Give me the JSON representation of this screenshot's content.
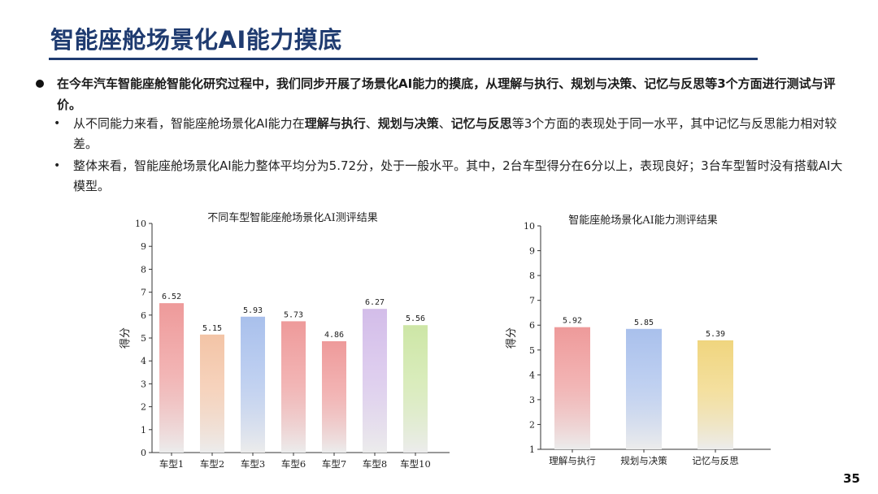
{
  "slide": {
    "title": "智能座舱场景化AI能力摸底",
    "page_number": "35"
  },
  "content": {
    "main_bullet": "在今年汽车智能座舱智能化研究过程中，我们同步开展了场景化AI能力的摸底，从理解与执行、规划与决策、记忆与反思等3个方面进行测试与评价。",
    "sub1": {
      "prefix": "从不同能力来看，智能座舱场景化AI能力在",
      "b1": "理解与执行",
      "sep1": "、",
      "b2": "规划与决策",
      "sep2": "、",
      "b3": "记忆与反思",
      "suffix": "等3个方面的表现处于同一水平，其中记忆与反思能力相对较差。"
    },
    "sub2": "整体来看，智能座舱场景化AI能力整体平均分为5.72分，处于一般水平。其中，2台车型得分在6分以上，表现良好；3台车型暂时没有搭载AI大模型。",
    "bullet_glyph": "•"
  },
  "chart_data": [
    {
      "type": "bar",
      "title": "不同车型智能座舱场景化AI测评结果",
      "ylabel": "得分",
      "xlabel": "",
      "ylim": [
        0,
        10
      ],
      "yticks": [
        "0",
        "1",
        "2",
        "3",
        "4",
        "5",
        "6",
        "7",
        "8",
        "9",
        "10"
      ],
      "categories": [
        "车型1",
        "车型2",
        "车型3",
        "车型6",
        "车型7",
        "车型8",
        "车型10"
      ],
      "values": [
        6.52,
        5.15,
        5.93,
        5.73,
        4.86,
        6.27,
        5.56
      ],
      "value_labels": [
        "6.52",
        "5.15",
        "5.93",
        "5.73",
        "4.86",
        "6.27",
        "5.56"
      ],
      "colors": [
        "#ee9a9a",
        "#f3c4a6",
        "#a9c0ec",
        "#ee9a9a",
        "#ee9a9a",
        "#d3bde9",
        "#cde6a6"
      ],
      "grid": false
    },
    {
      "type": "bar",
      "title": "智能座舱场景化AI能力测评结果",
      "ylabel": "得分",
      "xlabel": "",
      "ylim": [
        1,
        10
      ],
      "yticks": [
        "1",
        "2",
        "3",
        "4",
        "5",
        "6",
        "7",
        "8",
        "9",
        "10"
      ],
      "categories": [
        "理解与执行",
        "规划与决策",
        "记忆与反思"
      ],
      "values": [
        5.92,
        5.85,
        5.39
      ],
      "value_labels": [
        "5.92",
        "5.85",
        "5.39"
      ],
      "colors": [
        "#ee9a9a",
        "#a9c0ec",
        "#f0d57e"
      ],
      "grid": false
    }
  ]
}
